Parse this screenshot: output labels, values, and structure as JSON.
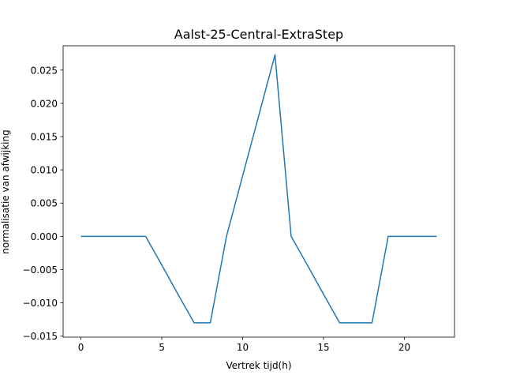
{
  "chart_data": {
    "type": "line",
    "title": "Aalst-25-Central-ExtraStep",
    "xlabel": "Vertrek tijd(h)",
    "ylabel": "normalisatie van afwijking",
    "xlim": [
      -1.1,
      23.1
    ],
    "ylim": [
      -0.01515,
      0.02865
    ],
    "xticks": [
      0,
      5,
      10,
      15,
      20
    ],
    "xtick_labels": [
      "0",
      "5",
      "10",
      "15",
      "20"
    ],
    "yticks": [
      -0.015,
      -0.01,
      -0.005,
      0.0,
      0.005,
      0.01,
      0.015,
      0.02,
      0.025
    ],
    "ytick_labels": [
      "−0.015",
      "−0.010",
      "−0.005",
      "0.000",
      "0.005",
      "0.010",
      "0.015",
      "0.020",
      "0.025"
    ],
    "grid": false,
    "series": [
      {
        "color": "#1f77b4",
        "x": [
          0,
          1,
          2,
          3,
          4,
          5,
          6,
          7,
          8,
          9,
          10,
          11,
          12,
          13,
          14,
          15,
          16,
          17,
          18,
          19,
          20,
          21,
          22
        ],
        "y": [
          0,
          0,
          0,
          0,
          0,
          -0.0043,
          -0.0087,
          -0.013,
          -0.013,
          0.0,
          0.0091,
          0.0182,
          0.0273,
          0.0,
          -0.0043,
          -0.0087,
          -0.013,
          -0.013,
          -0.013,
          0.0,
          0.0,
          0.0,
          0.0
        ]
      }
    ]
  }
}
